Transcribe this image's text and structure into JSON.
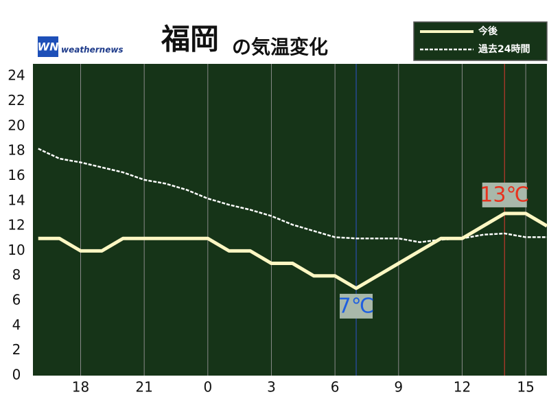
{
  "chart_data": {
    "type": "line",
    "title": "福岡",
    "subtitle": "の気温変化",
    "logo_mark": "WN",
    "source": "weathernews",
    "x": [
      16,
      17,
      18,
      19,
      20,
      21,
      22,
      23,
      24,
      25,
      26,
      27,
      28,
      29,
      30,
      31,
      32,
      33,
      34,
      35,
      36,
      37,
      38,
      39,
      40
    ],
    "series": [
      {
        "name": "今後",
        "color": "#fdf7c3",
        "dashed": false,
        "values": [
          11,
          11,
          10,
          10,
          11,
          11,
          11,
          11,
          11,
          10,
          10,
          9,
          9,
          8,
          8,
          7,
          8,
          9,
          10,
          11,
          11,
          12,
          13,
          13,
          12
        ]
      },
      {
        "name": "過去24時間",
        "color": "#ffffff",
        "dashed": true,
        "values": [
          18.2,
          17.4,
          17.1,
          16.7,
          16.3,
          15.7,
          15.4,
          14.9,
          14.2,
          13.7,
          13.3,
          12.8,
          12.1,
          11.6,
          11.1,
          11.0,
          11.0,
          11.0,
          10.7,
          10.9,
          11.0,
          11.3,
          11.4,
          11.1,
          11.1
        ]
      }
    ],
    "xlim": [
      15.75,
      40
    ],
    "xticks": [
      {
        "value": 18,
        "label": "18"
      },
      {
        "value": 21,
        "label": "21"
      },
      {
        "value": 24,
        "label": "0"
      },
      {
        "value": 27,
        "label": "3"
      },
      {
        "value": 30,
        "label": "6"
      },
      {
        "value": 33,
        "label": "9"
      },
      {
        "value": 36,
        "label": "12"
      },
      {
        "value": 39,
        "label": "15"
      }
    ],
    "ylim": [
      0,
      25
    ],
    "yticks": [
      0,
      2,
      4,
      6,
      8,
      10,
      12,
      14,
      16,
      18,
      20,
      22,
      24
    ],
    "grid": true,
    "annotations": [
      {
        "label": "7℃",
        "x": 31,
        "y": 7,
        "color": "#1f5fe0",
        "line_color": "#2a4fb0",
        "position": "below"
      },
      {
        "label": "13℃",
        "x": 38,
        "y": 13,
        "color": "#e8321e",
        "line_color": "#c0392b",
        "position": "above"
      }
    ]
  }
}
